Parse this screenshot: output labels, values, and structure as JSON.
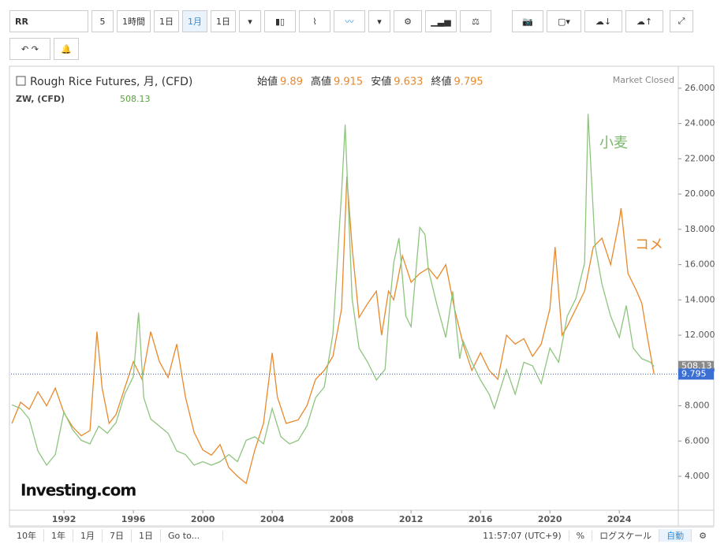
{
  "toolbar": {
    "symbol": "RR",
    "intervals": [
      "5",
      "1時間",
      "1日",
      "1月",
      "1日"
    ]
  },
  "footer": {
    "ranges": [
      "10年",
      "1年",
      "1月",
      "7日",
      "1日",
      "Go to..."
    ],
    "time": "11:57:07 (UTC+9)",
    "percent": "%",
    "log": "ログスケール",
    "auto": "自動"
  },
  "logo": "Investing.com",
  "chart_data": {
    "type": "line",
    "title": "Rough Rice Futures, 月, (CFD)",
    "ohlc": [
      {
        "label": "始値",
        "value": 9.89
      },
      {
        "label": "高値",
        "value": 9.915
      },
      {
        "label": "安値",
        "value": 9.633
      },
      {
        "label": "終値",
        "value": 9.795
      }
    ],
    "status": "Market Closed",
    "overlay_title": "ZW, (CFD)",
    "overlay_value": 508.13,
    "last_label": "9.795",
    "annotations": [
      "小麦",
      "コメ"
    ],
    "xlim": [
      1988.95,
      2027.4
    ],
    "xticks": [
      1992,
      1996,
      2000,
      2004,
      2008,
      2012,
      2016,
      2020,
      2024
    ],
    "ylim": [
      2.08,
      27.2
    ],
    "yticks": [
      {
        "value": 4,
        "label": "4.000"
      },
      {
        "value": 6,
        "label": "6.000"
      },
      {
        "value": 8,
        "label": "8.000"
      },
      {
        "value": 10,
        "label": "10.000"
      },
      {
        "value": 12,
        "label": "12.000"
      },
      {
        "value": 14,
        "label": "14.000"
      },
      {
        "value": 16,
        "label": "16.000"
      },
      {
        "value": 18,
        "label": "18.000"
      },
      {
        "value": 20,
        "label": "20.000"
      },
      {
        "value": 22,
        "label": "22.000"
      },
      {
        "value": 24,
        "label": "24.000"
      },
      {
        "value": 26,
        "label": "26.000"
      }
    ],
    "y2lim": [
      103,
      1352
    ],
    "series": [
      {
        "name": "コメ",
        "color": "#e8892b",
        "x": [
          1989.0,
          1989.5,
          1990.0,
          1990.5,
          1991.0,
          1991.5,
          1992.0,
          1992.5,
          1993.0,
          1993.5,
          1993.9,
          1994.2,
          1994.6,
          1995.0,
          1995.5,
          1996.0,
          1996.5,
          1997.0,
          1997.5,
          1998.0,
          1998.5,
          1999.0,
          1999.5,
          2000.0,
          2000.5,
          2001.0,
          2001.5,
          2002.0,
          2002.5,
          2003.0,
          2003.5,
          2004.0,
          2004.3,
          2004.8,
          2005.5,
          2006.0,
          2006.5,
          2007.0,
          2007.5,
          2008.0,
          2008.3,
          2008.6,
          2009.0,
          2009.5,
          2010.0,
          2010.3,
          2010.7,
          2011.0,
          2011.5,
          2012.0,
          2012.5,
          2013.0,
          2013.5,
          2014.0,
          2014.5,
          2015.0,
          2015.5,
          2016.0,
          2016.5,
          2017.0,
          2017.5,
          2018.0,
          2018.5,
          2019.0,
          2019.5,
          2020.0,
          2020.3,
          2020.7,
          2021.0,
          2021.5,
          2022.0,
          2022.5,
          2023.0,
          2023.5,
          2024.0,
          2024.1,
          2024.5,
          2025.0,
          2025.3,
          2025.6,
          2026.0
        ],
        "values": [
          7.0,
          8.2,
          7.8,
          8.8,
          8.0,
          9.0,
          7.6,
          6.8,
          6.3,
          6.6,
          12.2,
          9.0,
          7.0,
          7.5,
          9.0,
          10.5,
          9.5,
          12.2,
          10.5,
          9.6,
          11.5,
          8.5,
          6.5,
          5.5,
          5.2,
          5.8,
          4.5,
          4.0,
          3.6,
          5.5,
          7.0,
          11.0,
          8.5,
          7.0,
          7.2,
          8.0,
          9.5,
          10.0,
          10.8,
          13.5,
          21.0,
          17.0,
          13.0,
          13.8,
          14.5,
          12.0,
          14.5,
          14.0,
          16.5,
          15.0,
          15.5,
          15.8,
          15.2,
          16.0,
          13.5,
          11.5,
          10.0,
          11.0,
          10.0,
          9.5,
          12.0,
          11.5,
          11.8,
          10.8,
          11.5,
          13.5,
          17.0,
          12.0,
          12.5,
          13.5,
          14.5,
          17.0,
          17.5,
          16.0,
          18.5,
          19.2,
          15.5,
          14.5,
          13.8,
          12.0,
          9.795
        ]
      },
      {
        "name": "小麦",
        "color": "#8fc47f",
        "axis": "y2",
        "x": [
          1989.0,
          1989.5,
          1990.0,
          1990.5,
          1991.0,
          1991.5,
          1992.0,
          1992.5,
          1993.0,
          1993.5,
          1994.0,
          1994.5,
          1995.0,
          1995.5,
          1996.0,
          1996.3,
          1996.6,
          1997.0,
          1997.5,
          1998.0,
          1998.5,
          1999.0,
          1999.5,
          2000.0,
          2000.5,
          2001.0,
          2001.5,
          2002.0,
          2002.5,
          2003.0,
          2003.5,
          2004.0,
          2004.5,
          2005.0,
          2005.5,
          2006.0,
          2006.5,
          2007.0,
          2007.5,
          2008.0,
          2008.2,
          2008.6,
          2009.0,
          2009.5,
          2010.0,
          2010.5,
          2010.8,
          2011.0,
          2011.3,
          2011.7,
          2012.0,
          2012.5,
          2012.8,
          2013.0,
          2013.5,
          2014.0,
          2014.4,
          2014.8,
          2015.0,
          2015.5,
          2016.0,
          2016.5,
          2016.8,
          2017.5,
          2018.0,
          2018.5,
          2019.0,
          2019.5,
          2020.0,
          2020.5,
          2021.0,
          2021.5,
          2022.0,
          2022.2,
          2022.6,
          2023.0,
          2023.5,
          2024.0,
          2024.4,
          2024.8,
          2025.3,
          2025.8,
          2026.0
        ],
        "values": [
          400,
          390,
          360,
          270,
          230,
          260,
          380,
          330,
          300,
          290,
          340,
          320,
          350,
          430,
          480,
          660,
          420,
          360,
          340,
          320,
          270,
          260,
          230,
          240,
          230,
          240,
          260,
          240,
          300,
          310,
          290,
          390,
          310,
          290,
          300,
          340,
          420,
          450,
          600,
          1000,
          1190,
          700,
          560,
          520,
          470,
          500,
          700,
          800,
          870,
          650,
          620,
          900,
          880,
          780,
          680,
          590,
          720,
          530,
          580,
          520,
          470,
          430,
          390,
          500,
          430,
          520,
          510,
          460,
          560,
          520,
          650,
          700,
          800,
          1220,
          850,
          740,
          650,
          590,
          680,
          560,
          530,
          520,
          508.13
        ]
      }
    ]
  }
}
